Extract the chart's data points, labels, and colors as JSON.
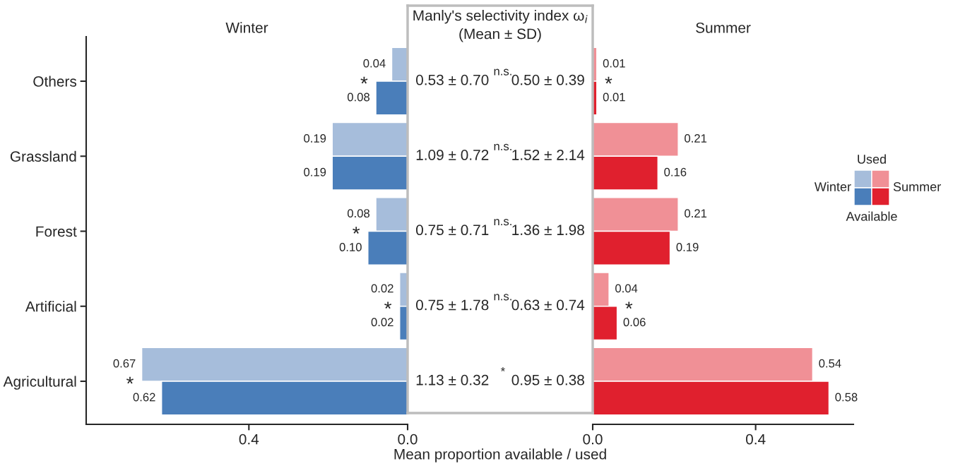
{
  "chart_data": [
    {
      "type": "bar",
      "title": "Winter",
      "orientation": "horizontal",
      "categories": [
        "Others",
        "Grassland",
        "Forest",
        "Artificial",
        "Agricultural"
      ],
      "series": [
        {
          "name": "Used",
          "color": "#a6bddb",
          "values": [
            0.04,
            0.19,
            0.08,
            0.02,
            0.67
          ],
          "value_labels": [
            "0.04",
            "0.19",
            "0.08",
            "0.02",
            "0.67"
          ]
        },
        {
          "name": "Available",
          "color": "#4a7eba",
          "values": [
            0.08,
            0.19,
            0.1,
            0.02,
            0.62
          ],
          "value_labels": [
            "0.08",
            "0.19",
            "0.10",
            "0.02",
            "0.62"
          ]
        }
      ],
      "xlim": [
        0.81,
        0
      ],
      "xticks": [
        0.4,
        {
          "value": 0,
          "label": "0.0"
        }
      ],
      "annotations": [
        "*",
        null,
        "*",
        "*",
        "*"
      ]
    },
    {
      "type": "other",
      "title": "Manly's selectivity index ω$_{i}$",
      "subtitle": "(Mean ± SD)",
      "xlabel": "Mean proportion available / used",
      "annotations": [
        "0.53 ± 0.70",
        "n.s.",
        "0.50 ± 0.39",
        "1.09 ± 0.72",
        "n.s.",
        "1.52 ± 2.14",
        "0.75 ± 0.71",
        "n.s.",
        "1.36 ± 1.98",
        "0.75 ± 1.78",
        "n.s.",
        "0.63 ± 0.74",
        "1.13 ± 0.32",
        "*",
        "0.95 ± 0.38"
      ]
    },
    {
      "type": "bar",
      "title": "Summer",
      "orientation": "horizontal",
      "categories": [
        null,
        null,
        null,
        null,
        null
      ],
      "tick_labels": "x",
      "legend": "right",
      "series": [
        {
          "color": "#f09096",
          "values": [
            0.01,
            0.21,
            0.21,
            0.04,
            0.54
          ],
          "value_labels": [
            "0.01",
            "0.21",
            "0.21",
            "0.04",
            "0.54"
          ]
        },
        {
          "color": "#e0202e",
          "values": [
            0.01,
            0.16,
            0.19,
            0.06,
            0.58
          ],
          "value_labels": [
            "0.01",
            "0.16",
            "0.19",
            "0.06",
            "0.58"
          ]
        }
      ],
      "xlim": [
        0,
        0.64
      ],
      "xticks": [
        {
          "value": 0,
          "label": "0.0"
        },
        0.4
      ],
      "annotations": [
        "*",
        null,
        null,
        "*",
        null
      ]
    }
  ]
}
